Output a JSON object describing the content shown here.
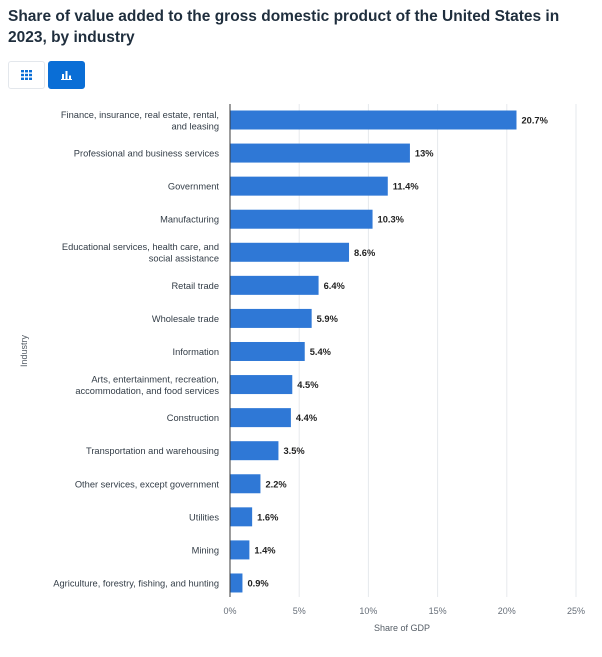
{
  "page": {
    "title": "Share of value added to the gross domestic product of the United States in 2023, by industry"
  },
  "toolbar": {
    "table_button_icon": "table-grid-icon",
    "chart_button_icon": "bar-chart-icon"
  },
  "colors": {
    "bar": "#2f78d6",
    "accent": "#0a6ed6",
    "grid": "#e6e9ed",
    "axis": "#3a3a3a"
  },
  "chart_data": {
    "type": "bar",
    "orientation": "horizontal",
    "title": "Share of value added to the gross domestic product of the United States in 2023, by industry",
    "xlabel": "Share of GDP",
    "ylabel": "Industry",
    "xlim": [
      0,
      25
    ],
    "xticks": [
      0,
      5,
      10,
      15,
      20,
      25
    ],
    "xtick_labels": [
      "0%",
      "5%",
      "10%",
      "15%",
      "20%",
      "25%"
    ],
    "grid": true,
    "categories": [
      [
        "Finance, insurance, real estate, rental,",
        "and leasing"
      ],
      [
        "Professional and business services"
      ],
      [
        "Government"
      ],
      [
        "Manufacturing"
      ],
      [
        "Educational services, health care, and",
        "social assistance"
      ],
      [
        "Retail trade"
      ],
      [
        "Wholesale trade"
      ],
      [
        "Information"
      ],
      [
        "Arts, entertainment, recreation,",
        "accommodation, and food services"
      ],
      [
        "Construction"
      ],
      [
        "Transportation and warehousing"
      ],
      [
        "Other services, except government"
      ],
      [
        "Utilities"
      ],
      [
        "Mining"
      ],
      [
        "Agriculture, forestry, fishing, and hunting"
      ]
    ],
    "values": [
      20.7,
      13,
      11.4,
      10.3,
      8.6,
      6.4,
      5.9,
      5.4,
      4.5,
      4.4,
      3.5,
      2.2,
      1.6,
      1.4,
      0.9
    ],
    "value_labels": [
      "20.7%",
      "13%",
      "11.4%",
      "10.3%",
      "8.6%",
      "6.4%",
      "5.9%",
      "5.4%",
      "4.5%",
      "4.4%",
      "3.5%",
      "2.2%",
      "1.6%",
      "1.4%",
      "0.9%"
    ]
  }
}
